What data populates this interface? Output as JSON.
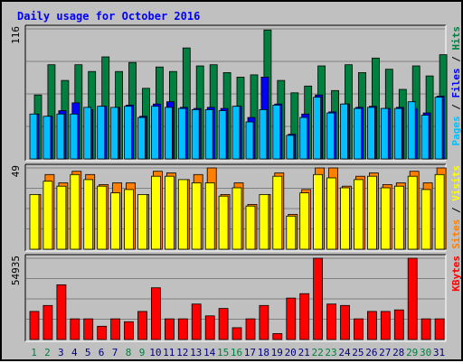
{
  "chart_data": {
    "title": "Daily usage for October 2016",
    "type": "bar",
    "days": [
      "1",
      "2",
      "3",
      "4",
      "5",
      "6",
      "7",
      "8",
      "9",
      "10",
      "11",
      "12",
      "13",
      "14",
      "15",
      "16",
      "17",
      "18",
      "19",
      "20",
      "21",
      "22",
      "23",
      "24",
      "25",
      "26",
      "27",
      "28",
      "29",
      "30",
      "31"
    ],
    "weekend_days": [
      "1",
      "2",
      "8",
      "9",
      "15",
      "16",
      "22",
      "23",
      "29",
      "30"
    ],
    "panels": [
      {
        "name": "pages-files-hits",
        "ymax_label": "116",
        "ymax": 116,
        "grid": true,
        "legend": [
          {
            "text": "Pages",
            "color": "#00c0ff"
          },
          {
            "text": "/",
            "color": "#000000"
          },
          {
            "text": "Files",
            "color": "#0000ff"
          },
          {
            "text": "/",
            "color": "#000000"
          },
          {
            "text": "Hits",
            "color": "#008040"
          }
        ],
        "series": [
          {
            "name": "Hits",
            "color": "#008040",
            "values": [
              57,
              84,
              70,
              84,
              78,
              91,
              78,
              86,
              63,
              82,
              78,
              99,
              83,
              84,
              77,
              73,
              75,
              115,
              70,
              59,
              65,
              83,
              61,
              84,
              77,
              90,
              80,
              62,
              83,
              74,
              93
            ]
          },
          {
            "name": "Files",
            "color": "#0000ff",
            "values": [
              40,
              38,
              43,
              50,
              44,
              47,
              46,
              48,
              38,
              49,
              51,
              46,
              45,
              46,
              45,
              47,
              37,
              73,
              49,
              22,
              40,
              57,
              42,
              49,
              46,
              47,
              45,
              46,
              45,
              41,
              56
            ]
          },
          {
            "name": "Pages",
            "color": "#00c0ff",
            "values": [
              40,
              38,
              40,
              40,
              46,
              47,
              46,
              47,
              37,
              47,
              46,
              45,
              44,
              44,
              43,
              47,
              33,
              44,
              48,
              21,
              37,
              55,
              41,
              49,
              45,
              46,
              45,
              45,
              51,
              39,
              55
            ]
          }
        ]
      },
      {
        "name": "sites-visits",
        "ymax_label": "49",
        "ymax": 49,
        "grid": true,
        "legend": [
          {
            "text": "Sites",
            "color": "#ff8000"
          },
          {
            "text": "/",
            "color": "#000000"
          },
          {
            "text": "Visits",
            "color": "#ffff00"
          }
        ],
        "series": [
          {
            "name": "Sites",
            "color": "#ff8000",
            "values": [
              33,
              45,
              40,
              47,
              45,
              39,
              40,
              40,
              33,
              47,
              46,
              42,
              45,
              49,
              33,
              40,
              27,
              33,
              46,
              21,
              36,
              49,
              49,
              38,
              44,
              46,
              39,
              40,
              47,
              40,
              49
            ]
          },
          {
            "name": "Visits",
            "color": "#ffff00",
            "values": [
              33,
              41,
              38,
              45,
              42,
              38,
              34,
              36,
              33,
              44,
              44,
              42,
              40,
              40,
              32,
              37,
              26,
              33,
              44,
              20,
              34,
              45,
              43,
              37,
              42,
              44,
              37,
              38,
              44,
              36,
              45
            ]
          }
        ]
      },
      {
        "name": "kbytes",
        "ymax_label": "54935",
        "ymax": 54935,
        "grid": true,
        "legend": [
          {
            "text": "KBytes",
            "color": "#ff0000"
          }
        ],
        "series": [
          {
            "name": "KBytes",
            "color": "#ff0000",
            "values": [
              19000,
              23000,
              37000,
              14000,
              14000,
              9000,
              14000,
              12000,
              19000,
              35000,
              14000,
              14000,
              24000,
              16000,
              21000,
              8000,
              14000,
              23000,
              4000,
              28000,
              31000,
              54935,
              24000,
              23000,
              14000,
              19000,
              19000,
              20000,
              54935,
              14000,
              14000
            ]
          }
        ]
      }
    ]
  },
  "colors": {
    "background": "#c0c0c0",
    "title": "#0000ff",
    "weekday_label": "#000080",
    "weekend_label": "#008040",
    "grid": "#808080",
    "panel_border_dark": "#000000",
    "panel_border_light": "#ffffff"
  }
}
